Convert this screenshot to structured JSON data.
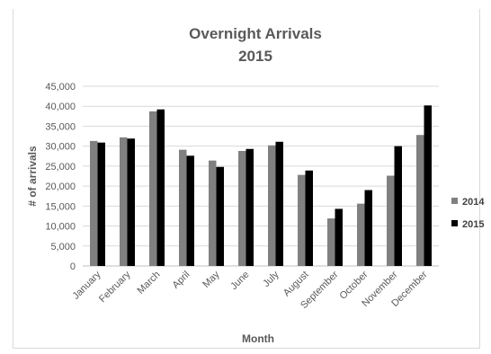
{
  "chart_data": {
    "type": "bar",
    "title": "Overnight Arrivals",
    "subtitle": "2015",
    "xlabel": "Month",
    "ylabel": "# of arrivals",
    "categories": [
      "January",
      "February",
      "March",
      "April",
      "May",
      "June",
      "July",
      "August",
      "September",
      "October",
      "November",
      "December"
    ],
    "series": [
      {
        "name": "2014",
        "color": "#808080",
        "values": [
          31300,
          32200,
          38700,
          29100,
          26400,
          28800,
          30200,
          22800,
          11900,
          15600,
          22600,
          32800
        ]
      },
      {
        "name": "2015",
        "color": "#000000",
        "values": [
          30900,
          31900,
          39200,
          27600,
          24800,
          29300,
          31100,
          23900,
          14300,
          19000,
          30000,
          40200
        ]
      }
    ],
    "ylim": [
      0,
      45000
    ],
    "yticks": [
      "0",
      "5,000",
      "10,000",
      "15,000",
      "20,000",
      "25,000",
      "30,000",
      "35,000",
      "40,000",
      "45,000"
    ],
    "ytick_values": [
      0,
      5000,
      10000,
      15000,
      20000,
      25000,
      30000,
      35000,
      40000,
      45000
    ],
    "grid": true,
    "legend": "right"
  }
}
